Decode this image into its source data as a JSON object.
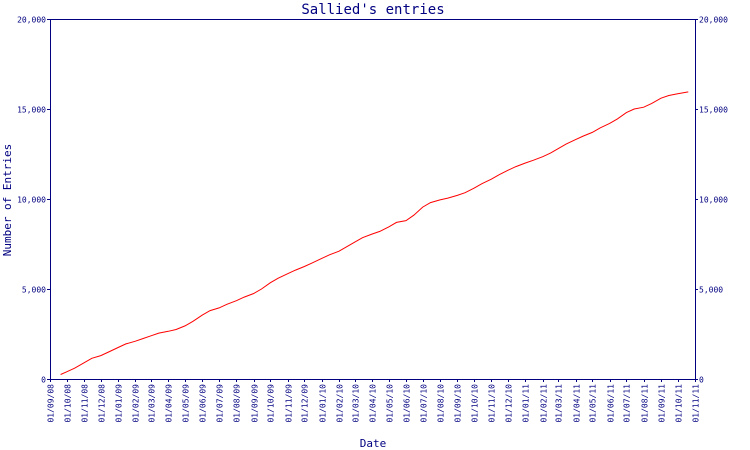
{
  "chart_data": {
    "type": "line",
    "title": "Sallied's entries",
    "xlabel": "Date",
    "ylabel": "Number of Entries",
    "ylim": [
      0,
      20000
    ],
    "y_ticks": [
      {
        "value": 0,
        "label": "0"
      },
      {
        "value": 5000,
        "label": "5,000"
      },
      {
        "value": 10000,
        "label": "10,000"
      },
      {
        "value": 15000,
        "label": "15,000"
      },
      {
        "value": 20000,
        "label": "20,000"
      }
    ],
    "x_ticks": [
      "01/09/08",
      "01/10/08",
      "01/11/08",
      "01/12/08",
      "01/01/09",
      "01/02/09",
      "01/03/09",
      "01/04/09",
      "01/05/09",
      "01/06/09",
      "01/07/09",
      "01/08/09",
      "01/09/09",
      "01/10/09",
      "01/11/09",
      "01/12/09",
      "01/01/10",
      "01/02/10",
      "01/03/10",
      "01/04/10",
      "01/05/10",
      "01/06/10",
      "01/07/10",
      "01/08/10",
      "01/09/10",
      "01/10/10",
      "01/11/10",
      "01/12/10",
      "01/01/11",
      "01/02/11",
      "01/03/11",
      "01/04/11",
      "01/05/11",
      "01/06/11",
      "01/07/11",
      "01/08/11",
      "01/09/11",
      "01/10/11",
      "01/11/11"
    ],
    "grid": false,
    "legend": "none",
    "colors": {
      "axis": "#000080",
      "series": "#ff0000",
      "text": "#000080"
    },
    "series": [
      {
        "x": [
          "2008-09-20",
          "2008-10-01",
          "2008-10-15",
          "2008-11-01",
          "2008-11-15",
          "2008-12-01",
          "2008-12-15",
          "2009-01-01",
          "2009-01-15",
          "2009-02-01",
          "2009-02-15",
          "2009-03-01",
          "2009-03-15",
          "2009-04-01",
          "2009-04-15",
          "2009-05-01",
          "2009-05-15",
          "2009-06-01",
          "2009-06-15",
          "2009-07-01",
          "2009-07-15",
          "2009-08-01",
          "2009-08-15",
          "2009-09-01",
          "2009-09-15",
          "2009-10-01",
          "2009-10-15",
          "2009-11-01",
          "2009-11-15",
          "2009-12-01",
          "2009-12-15",
          "2010-01-01",
          "2010-01-15",
          "2010-02-01",
          "2010-02-15",
          "2010-03-01",
          "2010-03-15",
          "2010-04-01",
          "2010-04-15",
          "2010-05-01",
          "2010-05-15",
          "2010-06-01",
          "2010-06-15",
          "2010-07-01",
          "2010-07-15",
          "2010-08-01",
          "2010-08-15",
          "2010-09-01",
          "2010-09-15",
          "2010-10-01",
          "2010-10-15",
          "2010-11-01",
          "2010-11-15",
          "2010-12-01",
          "2010-12-15",
          "2011-01-01",
          "2011-01-15",
          "2011-02-01",
          "2011-02-15",
          "2011-03-01",
          "2011-03-15",
          "2011-04-01",
          "2011-04-15",
          "2011-05-01",
          "2011-05-15",
          "2011-06-01",
          "2011-06-15",
          "2011-07-01",
          "2011-07-15",
          "2011-08-01",
          "2011-08-15",
          "2011-09-01",
          "2011-09-15",
          "2011-10-01",
          "2011-10-20"
        ],
        "y": [
          250,
          400,
          600,
          900,
          1150,
          1300,
          1500,
          1750,
          1950,
          2100,
          2250,
          2400,
          2550,
          2650,
          2750,
          2950,
          3200,
          3550,
          3800,
          3950,
          4150,
          4350,
          4550,
          4750,
          5000,
          5350,
          5600,
          5850,
          6050,
          6250,
          6450,
          6700,
          6900,
          7100,
          7350,
          7600,
          7850,
          8050,
          8200,
          8450,
          8700,
          8800,
          9100,
          9550,
          9800,
          9950,
          10050,
          10200,
          10350,
          10600,
          10850,
          11100,
          11350,
          11600,
          11800,
          12000,
          12150,
          12350,
          12550,
          12800,
          13050,
          13300,
          13500,
          13700,
          13950,
          14200,
          14450,
          14800,
          15000,
          15100,
          15300,
          15600,
          15750,
          15850,
          15950
        ]
      }
    ]
  }
}
